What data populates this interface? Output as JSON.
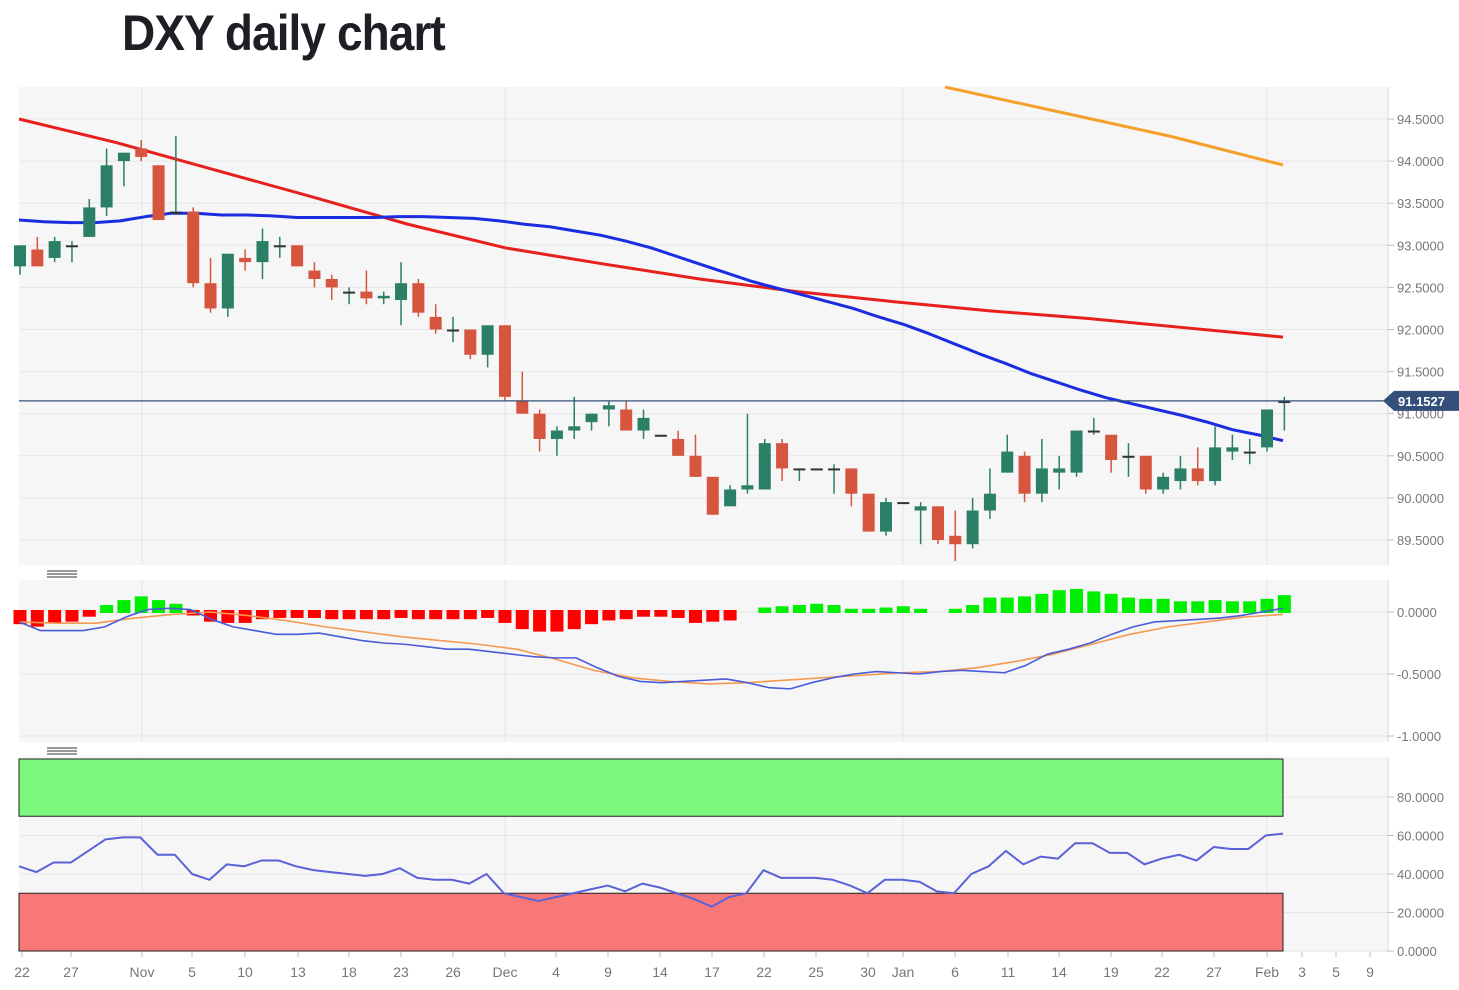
{
  "header": {
    "title": "DXY daily chart"
  },
  "colors": {
    "bull": "#2a7f66",
    "bear": "#d5553f",
    "sma_blue": "#1a2de0",
    "sma_red": "#e8201c",
    "sma_orange": "#f5a02a",
    "price_line": "#34507a",
    "macd_pos": "#00ee00",
    "macd_neg": "#ff0000",
    "macd_line": "#4a5cd8",
    "signal_line": "#f59a52",
    "rsi_line": "#5a62d8",
    "overbought_zone": "#7cf87c",
    "oversold_zone": "#f87878",
    "panel_bg": "#f5f5f5",
    "grid": "#e6e6e6"
  },
  "current_price_label": "91.1527",
  "chart_data": [
    {
      "type": "candlestick",
      "title": "DXY daily chart",
      "panel": "price",
      "y_ticks": [
        "94.5000",
        "94.0000",
        "93.5000",
        "93.0000",
        "92.5000",
        "92.0000",
        "91.5000",
        "91.0000",
        "90.5000",
        "90.0000",
        "89.5000"
      ],
      "ylim": [
        89.3,
        94.9
      ],
      "x_ticks": [
        "22",
        "27",
        "Nov",
        "5",
        "10",
        "13",
        "18",
        "23",
        "26",
        "Dec",
        "4",
        "9",
        "14",
        "17",
        "22",
        "25",
        "30",
        "Jan",
        "6",
        "11",
        "14",
        "19",
        "22",
        "27",
        "Feb",
        "3",
        "5",
        "9"
      ],
      "current_price": 91.1527,
      "candles": [
        {
          "o": 92.75,
          "h": 93.0,
          "l": 92.65,
          "c": 93.0
        },
        {
          "o": 92.95,
          "h": 93.1,
          "l": 92.75,
          "c": 92.75
        },
        {
          "o": 92.85,
          "h": 93.1,
          "l": 92.8,
          "c": 93.05
        },
        {
          "o": 93.0,
          "h": 93.05,
          "l": 92.8,
          "c": 93.0
        },
        {
          "o": 93.1,
          "h": 93.55,
          "l": 93.1,
          "c": 93.45
        },
        {
          "o": 93.45,
          "h": 94.15,
          "l": 93.35,
          "c": 93.95
        },
        {
          "o": 94.0,
          "h": 94.1,
          "l": 93.7,
          "c": 94.1
        },
        {
          "o": 94.15,
          "h": 94.25,
          "l": 94.0,
          "c": 94.05
        },
        {
          "o": 93.95,
          "h": 93.95,
          "l": 93.3,
          "c": 93.3
        },
        {
          "o": 93.4,
          "h": 94.3,
          "l": 93.4,
          "c": 93.4
        },
        {
          "o": 93.4,
          "h": 93.45,
          "l": 92.5,
          "c": 92.55
        },
        {
          "o": 92.55,
          "h": 92.85,
          "l": 92.2,
          "c": 92.25
        },
        {
          "o": 92.25,
          "h": 92.9,
          "l": 92.15,
          "c": 92.9
        },
        {
          "o": 92.85,
          "h": 92.95,
          "l": 92.7,
          "c": 92.8
        },
        {
          "o": 92.8,
          "h": 93.2,
          "l": 92.6,
          "c": 93.05
        },
        {
          "o": 93.0,
          "h": 93.1,
          "l": 92.85,
          "c": 93.0
        },
        {
          "o": 93.0,
          "h": 93.0,
          "l": 92.75,
          "c": 92.75
        },
        {
          "o": 92.7,
          "h": 92.8,
          "l": 92.5,
          "c": 92.6
        },
        {
          "o": 92.6,
          "h": 92.65,
          "l": 92.35,
          "c": 92.5
        },
        {
          "o": 92.45,
          "h": 92.5,
          "l": 92.3,
          "c": 92.45
        },
        {
          "o": 92.45,
          "h": 92.7,
          "l": 92.3,
          "c": 92.37
        },
        {
          "o": 92.37,
          "h": 92.45,
          "l": 92.3,
          "c": 92.4
        },
        {
          "o": 92.35,
          "h": 92.8,
          "l": 92.05,
          "c": 92.55
        },
        {
          "o": 92.55,
          "h": 92.6,
          "l": 92.15,
          "c": 92.2
        },
        {
          "o": 92.15,
          "h": 92.3,
          "l": 91.95,
          "c": 92.0
        },
        {
          "o": 92.0,
          "h": 92.15,
          "l": 91.85,
          "c": 92.0
        },
        {
          "o": 92.0,
          "h": 92.0,
          "l": 91.65,
          "c": 91.7
        },
        {
          "o": 91.7,
          "h": 92.05,
          "l": 91.55,
          "c": 92.05
        },
        {
          "o": 92.05,
          "h": 92.05,
          "l": 91.15,
          "c": 91.2
        },
        {
          "o": 91.15,
          "h": 91.5,
          "l": 91.0,
          "c": 91.0
        },
        {
          "o": 91.0,
          "h": 91.05,
          "l": 90.55,
          "c": 90.7
        },
        {
          "o": 90.7,
          "h": 90.85,
          "l": 90.5,
          "c": 90.8
        },
        {
          "o": 90.8,
          "h": 91.2,
          "l": 90.7,
          "c": 90.85
        },
        {
          "o": 90.9,
          "h": 91.0,
          "l": 90.8,
          "c": 91.0
        },
        {
          "o": 91.05,
          "h": 91.15,
          "l": 90.85,
          "c": 91.1
        },
        {
          "o": 91.05,
          "h": 91.15,
          "l": 90.8,
          "c": 90.8
        },
        {
          "o": 90.8,
          "h": 91.05,
          "l": 90.7,
          "c": 90.95
        },
        {
          "o": 90.75,
          "h": 90.75,
          "l": 90.75,
          "c": 90.75
        },
        {
          "o": 90.7,
          "h": 90.8,
          "l": 90.5,
          "c": 90.5
        },
        {
          "o": 90.5,
          "h": 90.75,
          "l": 90.25,
          "c": 90.25
        },
        {
          "o": 90.25,
          "h": 90.25,
          "l": 89.8,
          "c": 89.8
        },
        {
          "o": 89.9,
          "h": 90.15,
          "l": 89.9,
          "c": 90.1
        },
        {
          "o": 90.1,
          "h": 91.0,
          "l": 90.05,
          "c": 90.15
        },
        {
          "o": 90.1,
          "h": 90.7,
          "l": 90.1,
          "c": 90.65
        },
        {
          "o": 90.65,
          "h": 90.7,
          "l": 90.2,
          "c": 90.35
        },
        {
          "o": 90.35,
          "h": 90.35,
          "l": 90.2,
          "c": 90.35
        },
        {
          "o": 90.35,
          "h": 90.35,
          "l": 90.35,
          "c": 90.35
        },
        {
          "o": 90.35,
          "h": 90.4,
          "l": 90.05,
          "c": 90.35
        },
        {
          "o": 90.35,
          "h": 90.35,
          "l": 89.9,
          "c": 90.05
        },
        {
          "o": 90.05,
          "h": 90.05,
          "l": 89.6,
          "c": 89.6
        },
        {
          "o": 89.6,
          "h": 90.0,
          "l": 89.55,
          "c": 89.95
        },
        {
          "o": 89.95,
          "h": 89.95,
          "l": 89.95,
          "c": 89.95
        },
        {
          "o": 89.85,
          "h": 89.95,
          "l": 89.45,
          "c": 89.9
        },
        {
          "o": 89.9,
          "h": 89.9,
          "l": 89.45,
          "c": 89.5
        },
        {
          "o": 89.55,
          "h": 89.85,
          "l": 89.25,
          "c": 89.45
        },
        {
          "o": 89.45,
          "h": 90.0,
          "l": 89.4,
          "c": 89.85
        },
        {
          "o": 89.85,
          "h": 90.35,
          "l": 89.75,
          "c": 90.05
        },
        {
          "o": 90.3,
          "h": 90.75,
          "l": 90.3,
          "c": 90.55
        },
        {
          "o": 90.5,
          "h": 90.55,
          "l": 89.95,
          "c": 90.05
        },
        {
          "o": 90.05,
          "h": 90.7,
          "l": 89.95,
          "c": 90.35
        },
        {
          "o": 90.3,
          "h": 90.5,
          "l": 90.1,
          "c": 90.35
        },
        {
          "o": 90.3,
          "h": 90.8,
          "l": 90.25,
          "c": 90.8
        },
        {
          "o": 90.8,
          "h": 90.95,
          "l": 90.75,
          "c": 90.8
        },
        {
          "o": 90.75,
          "h": 90.75,
          "l": 90.3,
          "c": 90.45
        },
        {
          "o": 90.5,
          "h": 90.65,
          "l": 90.25,
          "c": 90.5
        },
        {
          "o": 90.5,
          "h": 90.5,
          "l": 90.05,
          "c": 90.1
        },
        {
          "o": 90.1,
          "h": 90.3,
          "l": 90.05,
          "c": 90.25
        },
        {
          "o": 90.2,
          "h": 90.5,
          "l": 90.1,
          "c": 90.35
        },
        {
          "o": 90.35,
          "h": 90.6,
          "l": 90.15,
          "c": 90.2
        },
        {
          "o": 90.2,
          "h": 90.85,
          "l": 90.15,
          "c": 90.6
        },
        {
          "o": 90.55,
          "h": 90.75,
          "l": 90.45,
          "c": 90.6
        },
        {
          "o": 90.55,
          "h": 90.7,
          "l": 90.4,
          "c": 90.55
        },
        {
          "o": 90.6,
          "h": 91.05,
          "l": 90.55,
          "c": 91.05
        },
        {
          "o": 91.15,
          "h": 91.2,
          "l": 90.8,
          "c": 91.15
        }
      ],
      "series": [
        {
          "name": "SMA (blue)",
          "values": [
            93.3,
            93.28,
            93.27,
            93.27,
            93.29,
            93.34,
            93.38,
            93.38,
            93.36,
            93.36,
            93.35,
            93.33,
            93.33,
            93.33,
            93.33,
            93.34,
            93.34,
            93.33,
            93.32,
            93.29,
            93.25,
            93.22,
            93.17,
            93.12,
            93.05,
            92.97,
            92.87,
            92.77,
            92.67,
            92.57,
            92.49,
            92.41,
            92.33,
            92.25,
            92.15,
            92.06,
            91.95,
            91.83,
            91.71,
            91.6,
            91.48,
            91.38,
            91.28,
            91.19,
            91.12,
            91.05,
            90.98,
            90.9,
            90.81,
            90.75,
            90.68
          ],
          "note": "interpolated to 51 points across chart width"
        },
        {
          "name": "SMA (red)",
          "values": [
            94.5,
            94.22,
            93.9,
            93.58,
            93.25,
            92.97,
            92.78,
            92.6,
            92.45,
            92.33,
            92.22,
            92.13,
            92.02,
            91.91
          ],
          "note": "interpolated to 14 points across chart width"
        },
        {
          "name": "SMA (orange)",
          "values": [
            94.9,
            94.6,
            94.3,
            93.95
          ]
        }
      ]
    },
    {
      "type": "bar+line",
      "panel": "MACD",
      "y_ticks": [
        "0.0000",
        "-0.5000",
        "-1.0000"
      ],
      "ylim": [
        -1.0,
        0.25
      ],
      "series": [
        {
          "name": "histogram",
          "values": [
            -0.09,
            -0.11,
            -0.08,
            -0.07,
            -0.03,
            0.04,
            0.08,
            0.11,
            0.08,
            0.05,
            -0.02,
            -0.07,
            -0.08,
            -0.08,
            -0.05,
            -0.04,
            -0.04,
            -0.04,
            -0.05,
            -0.05,
            -0.05,
            -0.05,
            -0.04,
            -0.05,
            -0.05,
            -0.05,
            -0.05,
            -0.04,
            -0.08,
            -0.13,
            -0.15,
            -0.15,
            -0.13,
            -0.09,
            -0.06,
            -0.05,
            -0.03,
            -0.03,
            -0.04,
            -0.08,
            -0.07,
            -0.06,
            null,
            0.02,
            0.03,
            0.04,
            0.05,
            0.04,
            0.01,
            0.01,
            0.02,
            0.03,
            0.01,
            null,
            0.01,
            0.04,
            0.1,
            0.1,
            0.11,
            0.13,
            0.16,
            0.17,
            0.15,
            0.13,
            0.1,
            0.09,
            0.09,
            0.07,
            0.07,
            0.08,
            0.07,
            0.07,
            0.09,
            0.12
          ]
        },
        {
          "name": "MACD line",
          "values": [
            -0.08,
            -0.15,
            -0.15,
            -0.15,
            -0.12,
            -0.04,
            0.02,
            0.03,
            0.02,
            -0.06,
            -0.12,
            -0.15,
            -0.18,
            -0.18,
            -0.17,
            -0.2,
            -0.23,
            -0.25,
            -0.26,
            -0.28,
            -0.3,
            -0.3,
            -0.32,
            -0.34,
            -0.36,
            -0.37,
            -0.37,
            -0.45,
            -0.52,
            -0.56,
            -0.57,
            -0.56,
            -0.55,
            -0.54,
            -0.57,
            -0.61,
            -0.62,
            -0.57,
            -0.53,
            -0.5,
            -0.48,
            -0.49,
            -0.5,
            -0.48,
            -0.47,
            -0.48,
            -0.49,
            -0.43,
            -0.34,
            -0.3,
            -0.25,
            -0.18,
            -0.12,
            -0.08,
            -0.07,
            -0.06,
            -0.05,
            -0.03,
            0.0,
            0.03
          ]
        },
        {
          "name": "Signal line",
          "values": [
            -0.08,
            -0.09,
            -0.09,
            -0.05,
            -0.02,
            0.0,
            -0.03,
            -0.07,
            -0.12,
            -0.16,
            -0.2,
            -0.23,
            -0.26,
            -0.3,
            -0.38,
            -0.47,
            -0.53,
            -0.56,
            -0.58,
            -0.57,
            -0.55,
            -0.53,
            -0.51,
            -0.49,
            -0.48,
            -0.45,
            -0.4,
            -0.34,
            -0.26,
            -0.18,
            -0.12,
            -0.08,
            -0.04,
            -0.02
          ]
        }
      ]
    },
    {
      "type": "line",
      "panel": "RSI",
      "y_ticks": [
        "80.0000",
        "60.0000",
        "40.0000",
        "20.0000",
        "0.0000"
      ],
      "ylim": [
        0,
        100
      ],
      "zones": [
        {
          "name": "overbought",
          "from": 70,
          "to": 100,
          "color": "#7cf87c"
        },
        {
          "name": "oversold",
          "from": 0,
          "to": 30,
          "color": "#f87878"
        }
      ],
      "series": [
        {
          "name": "RSI",
          "values": [
            44,
            41,
            46,
            46,
            52,
            58,
            59,
            59,
            50,
            50,
            40,
            37,
            45,
            44,
            47,
            47,
            44,
            42,
            41,
            40,
            39,
            40,
            43,
            38,
            37,
            37,
            35,
            40,
            30,
            28,
            26,
            28,
            30,
            32,
            34,
            31,
            35,
            33,
            30,
            27,
            23,
            28,
            30,
            42,
            38,
            38,
            38,
            37,
            34,
            30,
            37,
            37,
            36,
            31,
            30,
            40,
            44,
            52,
            45,
            49,
            48,
            56,
            56,
            51,
            51,
            45,
            48,
            50,
            47,
            54,
            53,
            53,
            60,
            61
          ]
        }
      ]
    }
  ],
  "x_axis": {
    "labels": [
      "22",
      "27",
      "Nov",
      "5",
      "10",
      "13",
      "18",
      "23",
      "26",
      "Dec",
      "4",
      "9",
      "14",
      "17",
      "22",
      "25",
      "30",
      "Jan",
      "6",
      "11",
      "14",
      "19",
      "22",
      "27",
      "Feb",
      "3",
      "5",
      "9"
    ]
  }
}
